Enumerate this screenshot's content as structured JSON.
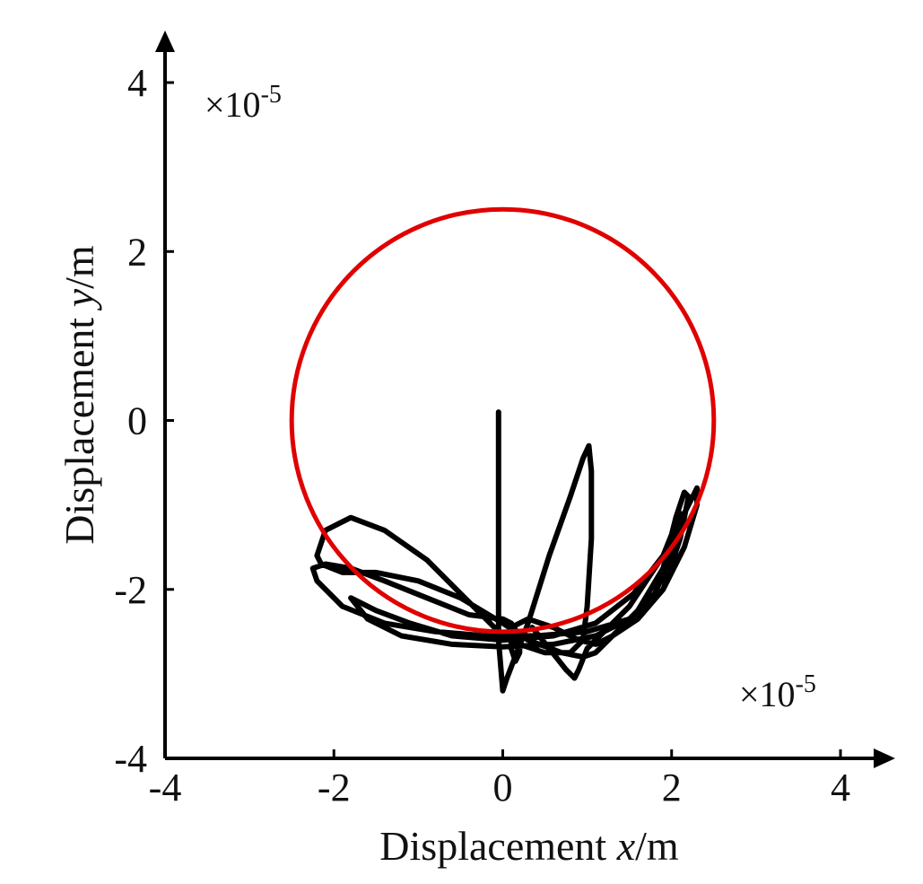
{
  "chart_data": {
    "type": "line",
    "xlabel": {
      "prefix": "Displacement ",
      "var": "x",
      "suffix": "/m"
    },
    "ylabel": {
      "prefix": "Displacement ",
      "var": "y",
      "suffix": "/m"
    },
    "xlim": [
      -4,
      4
    ],
    "ylim": [
      -4,
      4
    ],
    "xticks": [
      -4,
      -2,
      0,
      2,
      4
    ],
    "yticks": [
      -4,
      -2,
      0,
      2,
      4
    ],
    "x_tick_labels": [
      "-4",
      "-2",
      "0",
      "2",
      "4"
    ],
    "y_tick_labels": [
      "-4",
      "-2",
      "0",
      "2",
      "4"
    ],
    "x_scale_note": {
      "base": "×10",
      "exp": "-5"
    },
    "y_scale_note": {
      "base": "×10",
      "exp": "-5"
    },
    "grid": false,
    "series": [
      {
        "kind": "circle",
        "color": "#e00000",
        "center": [
          0,
          0
        ],
        "radius": 2.5
      },
      {
        "kind": "trajectory",
        "color": "#000000",
        "x": [
          -0.05,
          -0.05,
          -0.05,
          -0.05,
          0.0,
          0.05,
          0.3,
          0.55,
          0.8,
          0.95,
          1.02,
          1.05,
          1.05,
          1.0,
          0.95,
          0.8,
          0.5,
          0.2,
          -0.05,
          -0.4,
          -0.9,
          -1.4,
          -1.8,
          -2.1,
          -2.2,
          -2.15,
          -1.9,
          -1.5,
          -1.0,
          -0.5,
          0.0,
          0.3,
          0.7,
          0.95,
          1.1,
          1.3,
          1.6,
          1.9,
          2.05,
          2.15,
          2.2,
          2.1,
          1.9,
          1.6,
          1.3,
          1.1,
          0.9,
          0.6,
          0.3,
          0.1,
          0.1,
          0.15,
          0.2,
          0.2,
          0.1,
          0.0,
          -0.4,
          -0.9,
          -1.4,
          -1.8,
          -2.1,
          -2.25,
          -2.2,
          -1.9,
          -1.4,
          -0.8,
          -0.2,
          0.4,
          1.0,
          1.5,
          1.9,
          2.15,
          2.3,
          2.3,
          2.15,
          1.9,
          1.55,
          1.1,
          0.6,
          0.0,
          -0.6,
          -1.1,
          -1.5,
          -1.8,
          -1.6,
          -1.2,
          -0.6,
          0.0,
          0.6,
          1.1,
          1.5,
          1.8,
          2.0,
          2.1,
          1.9,
          1.5,
          1.0,
          0.9,
          0.85,
          0.75,
          0.55,
          0.35
        ],
        "y": [
          0.1,
          -1.0,
          -2.0,
          -2.6,
          -3.2,
          -3.05,
          -2.4,
          -1.6,
          -0.9,
          -0.45,
          -0.3,
          -0.6,
          -1.4,
          -2.2,
          -2.6,
          -2.75,
          -2.75,
          -2.65,
          -2.5,
          -2.15,
          -1.65,
          -1.3,
          -1.15,
          -1.3,
          -1.6,
          -1.7,
          -1.8,
          -1.8,
          -1.9,
          -2.1,
          -2.4,
          -2.6,
          -2.75,
          -2.8,
          -2.75,
          -2.55,
          -2.25,
          -1.75,
          -1.15,
          -0.85,
          -0.9,
          -1.4,
          -2.0,
          -2.35,
          -2.55,
          -2.65,
          -2.6,
          -2.45,
          -2.35,
          -2.45,
          -2.7,
          -2.85,
          -2.75,
          -2.55,
          -2.4,
          -2.35,
          -2.3,
          -2.1,
          -1.9,
          -1.75,
          -1.7,
          -1.75,
          -1.9,
          -2.2,
          -2.4,
          -2.5,
          -2.55,
          -2.55,
          -2.5,
          -2.35,
          -2.0,
          -1.5,
          -1.0,
          -0.8,
          -1.1,
          -1.6,
          -2.05,
          -2.4,
          -2.55,
          -2.6,
          -2.55,
          -2.4,
          -2.25,
          -2.1,
          -2.35,
          -2.55,
          -2.65,
          -2.68,
          -2.65,
          -2.55,
          -2.35,
          -2.05,
          -1.6,
          -1.1,
          -1.6,
          -2.2,
          -2.7,
          -2.95,
          -3.05,
          -2.95,
          -2.7,
          -2.45
        ]
      }
    ]
  }
}
